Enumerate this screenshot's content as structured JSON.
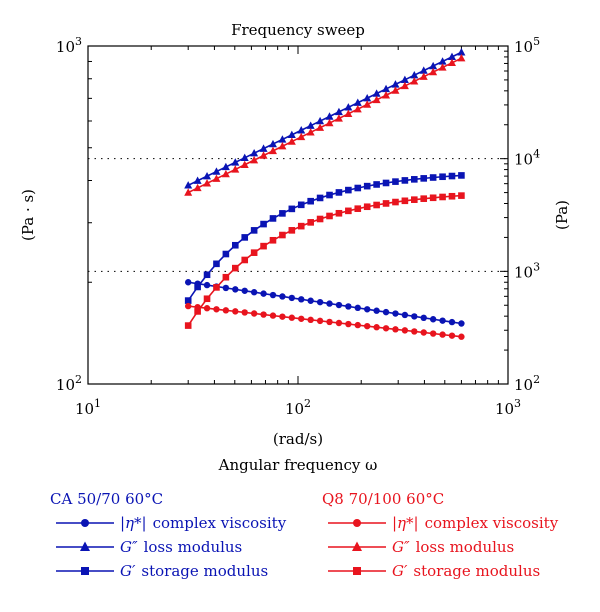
{
  "chart_data": {
    "type": "scatter",
    "title": "Frequency sweep",
    "xlabel_unit": "(rad/s)",
    "xlabel": "Angular frequency ω",
    "ylabel_left": "(Pa · s)",
    "ylabel_right": "(Pa)",
    "x_scale": "log",
    "y_left_scale": "log",
    "y_right_scale": "log",
    "xlim": [
      10,
      1000
    ],
    "ylim_left": [
      100,
      1000
    ],
    "ylim_right": [
      100,
      100000
    ],
    "x_ticks": [
      {
        "base": "10",
        "exp": "1"
      },
      {
        "base": "10",
        "exp": "2"
      },
      {
        "base": "10",
        "exp": "3"
      }
    ],
    "y_left_ticks": [
      {
        "base": "10",
        "exp": "2"
      },
      {
        "base": "10",
        "exp": "3"
      }
    ],
    "y_right_ticks": [
      {
        "base": "10",
        "exp": "2"
      },
      {
        "base": "10",
        "exp": "3"
      },
      {
        "base": "10",
        "exp": "4"
      },
      {
        "base": "10",
        "exp": "5"
      }
    ],
    "grid": "dotted horizontal lines at 10^3 and 10^4 Pa",
    "colors": {
      "ca": "#0a14b4",
      "q8": "#e8141e"
    },
    "legend": {
      "groups": [
        {
          "key": "ca",
          "title": "CA 50/70 60°C",
          "entries": [
            {
              "marker": "circle",
              "symbol": "|η*|",
              "text": "complex viscosity"
            },
            {
              "marker": "triangle",
              "symbol": "G″",
              "text": "loss modulus"
            },
            {
              "marker": "square",
              "symbol": "G′",
              "text": "storage modulus"
            }
          ]
        },
        {
          "key": "q8",
          "title": "Q8 70/100 60°C",
          "entries": [
            {
              "marker": "circle",
              "symbol": "|η*|",
              "text": "complex viscosity"
            },
            {
              "marker": "triangle",
              "symbol": "G″",
              "text": "loss modulus"
            },
            {
              "marker": "square",
              "symbol": "G′",
              "text": "storage modulus"
            }
          ]
        }
      ]
    },
    "series": [
      {
        "group": "ca",
        "name": "|η*| complex viscosity",
        "marker": "circle",
        "axis": "left",
        "x_range": [
          30,
          600
        ],
        "y_start": 200,
        "y_end": 151,
        "points": 30
      },
      {
        "group": "ca",
        "name": "G″ loss modulus",
        "marker": "triangle",
        "axis": "right",
        "x_range": [
          30,
          600
        ],
        "y_start": 5800,
        "y_end": 88000,
        "points": 30
      },
      {
        "group": "ca",
        "name": "G′ storage modulus",
        "marker": "square",
        "axis": "right",
        "x_range": [
          30,
          600
        ],
        "y_start": 550,
        "y_end": 7100,
        "points": 30,
        "shape": "saturating"
      },
      {
        "group": "q8",
        "name": "|η*| complex viscosity",
        "marker": "circle",
        "axis": "left",
        "x_range": [
          30,
          600
        ],
        "y_start": 170,
        "y_end": 138,
        "points": 30
      },
      {
        "group": "q8",
        "name": "G″ loss modulus",
        "marker": "triangle",
        "axis": "right",
        "x_range": [
          30,
          600
        ],
        "y_start": 5000,
        "y_end": 78000,
        "points": 30
      },
      {
        "group": "q8",
        "name": "G′ storage modulus",
        "marker": "square",
        "axis": "right",
        "x_range": [
          30,
          600
        ],
        "y_start": 330,
        "y_end": 4700,
        "points": 30,
        "shape": "saturating"
      }
    ]
  }
}
